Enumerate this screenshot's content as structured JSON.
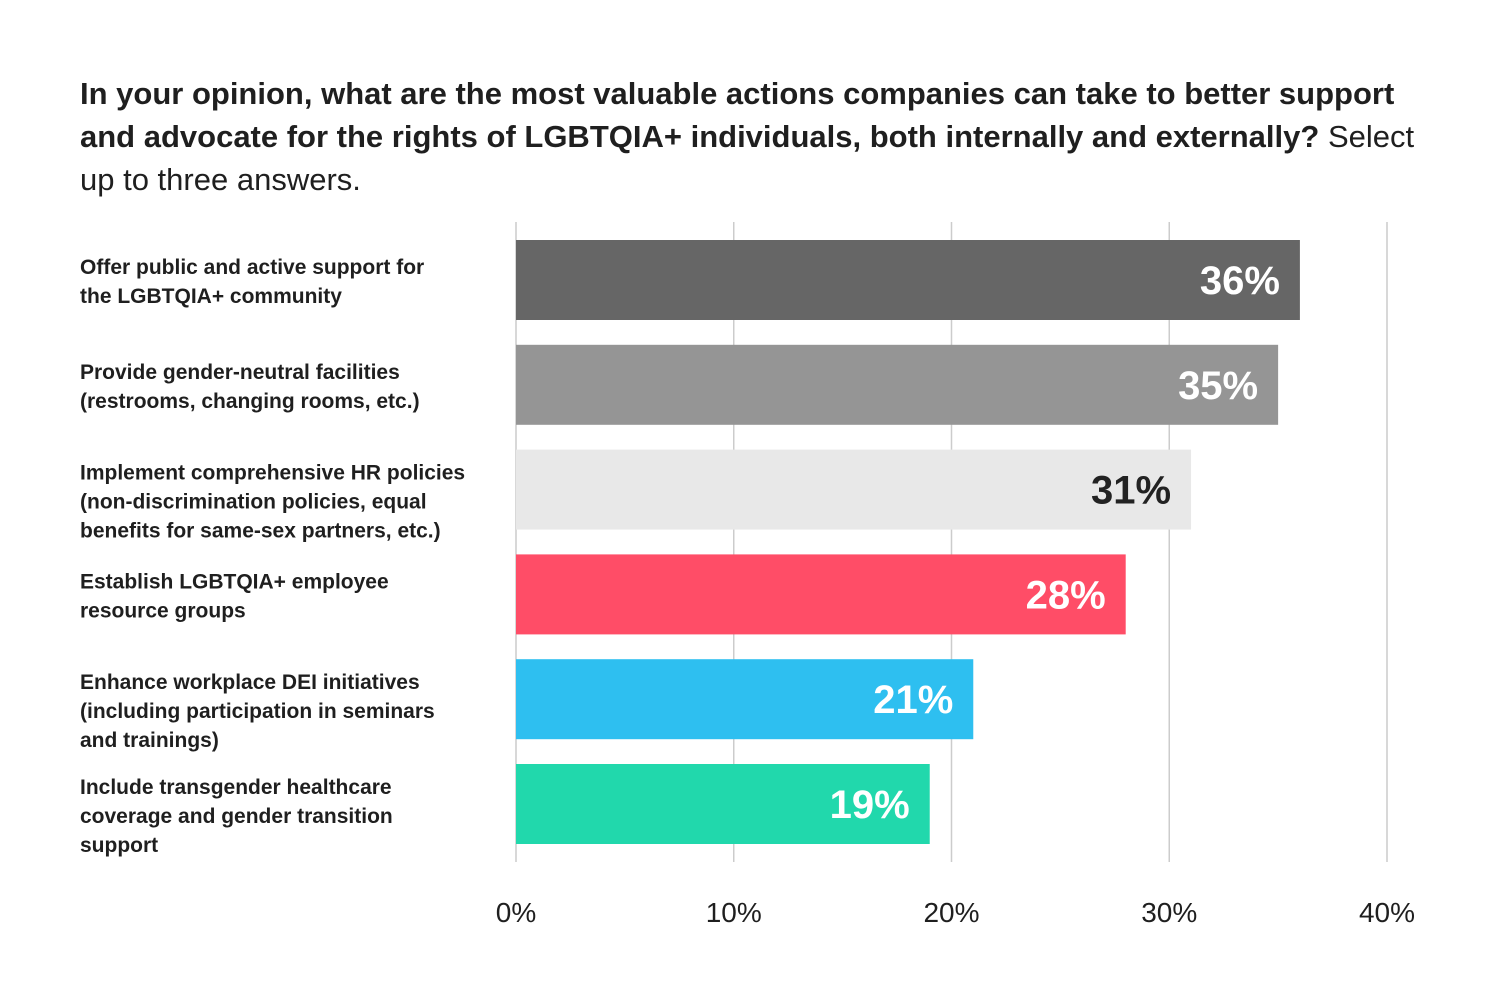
{
  "chart_data": {
    "type": "bar",
    "orientation": "horizontal",
    "title": "In your opinion, what are the most valuable actions companies can take to better support and advocate for the rights of LGBTQIA+ individuals, both internally and externally?",
    "subtitle": "Select up to three answers.",
    "categories": [
      [
        "Offer public and active support for",
        "the LGBTQIA+ community"
      ],
      [
        "Provide gender-neutral facilities",
        "(restrooms, changing rooms, etc.)"
      ],
      [
        "Implement comprehensive HR policies",
        "(non-discrimination policies, equal",
        "benefits for same-sex partners, etc.)"
      ],
      [
        "Establish LGBTQIA+ employee",
        "resource groups"
      ],
      [
        "Enhance workplace DEI initiatives",
        "(including participation in seminars",
        "and trainings)"
      ],
      [
        "Include transgender healthcare",
        "coverage and gender transition",
        "support"
      ]
    ],
    "values": [
      36,
      35,
      31,
      28,
      21,
      19
    ],
    "value_labels": [
      "36%",
      "35%",
      "31%",
      "28%",
      "21%",
      "19%"
    ],
    "colors": [
      "#666666",
      "#959595",
      "#e8e8e8",
      "#ff4d67",
      "#2ebff0",
      "#21d8ac"
    ],
    "value_label_colors": [
      "#ffffff",
      "#ffffff",
      "#222222",
      "#ffffff",
      "#ffffff",
      "#ffffff"
    ],
    "xlim": [
      0,
      40
    ],
    "xticks": [
      0,
      10,
      20,
      30,
      40
    ],
    "xtick_labels": [
      "0%",
      "10%",
      "20%",
      "30%",
      "40%"
    ],
    "grid": true,
    "legend": "none"
  }
}
